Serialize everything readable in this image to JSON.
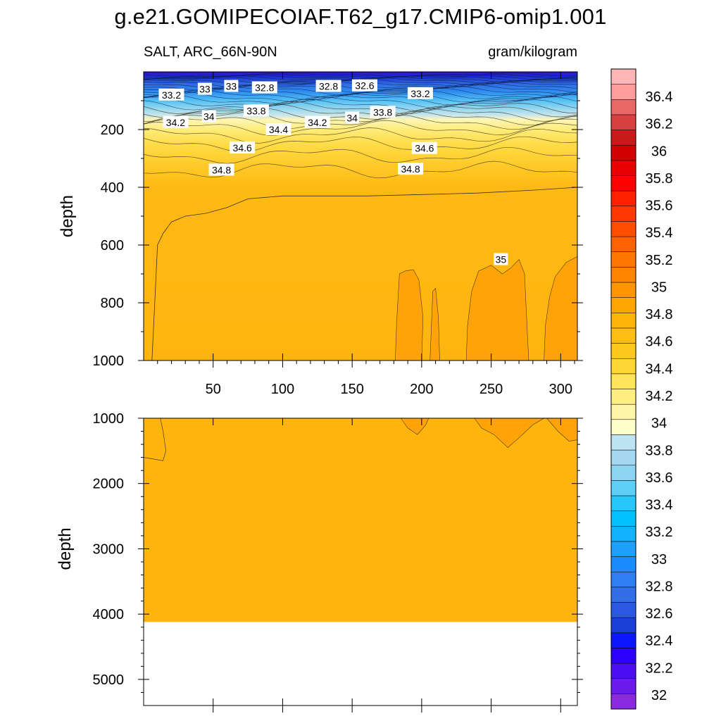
{
  "header": {
    "title": "g.e21.GOMIPECOIAF.T62_g17.CMIP6-omip1.001",
    "variable_region": "SALT, ARC_66N-90N",
    "units": "gram/kilogram"
  },
  "chart_data": {
    "type": "contour",
    "variable": "SALT",
    "region": "ARC_66N-90N",
    "units": "gram/kilogram",
    "x_axis": {
      "range": [
        0,
        312
      ],
      "ticks": [
        50,
        100,
        150,
        200,
        250,
        300
      ]
    },
    "panels": [
      {
        "name": "upper",
        "ylabel": "depth",
        "ylim": [
          0,
          1000
        ],
        "y_ticks": [
          200,
          400,
          600,
          800,
          1000
        ],
        "contour_labels": [
          {
            "text": "33.2",
            "x": 20,
            "depth": 80
          },
          {
            "text": "33",
            "x": 44,
            "depth": 60
          },
          {
            "text": "33",
            "x": 63,
            "depth": 50
          },
          {
            "text": "32.8",
            "x": 87,
            "depth": 55
          },
          {
            "text": "32.8",
            "x": 133,
            "depth": 50
          },
          {
            "text": "32.6",
            "x": 159,
            "depth": 48
          },
          {
            "text": "33.2",
            "x": 199,
            "depth": 75
          },
          {
            "text": "34.2",
            "x": 23,
            "depth": 175
          },
          {
            "text": "34",
            "x": 47,
            "depth": 155
          },
          {
            "text": "33.8",
            "x": 81,
            "depth": 135
          },
          {
            "text": "34.2",
            "x": 125,
            "depth": 175
          },
          {
            "text": "34",
            "x": 150,
            "depth": 160
          },
          {
            "text": "33.8",
            "x": 172,
            "depth": 140
          },
          {
            "text": "34.4",
            "x": 97,
            "depth": 200
          },
          {
            "text": "34.6",
            "x": 71,
            "depth": 263
          },
          {
            "text": "34.6",
            "x": 202,
            "depth": 265
          },
          {
            "text": "34.8",
            "x": 56,
            "depth": 340
          },
          {
            "text": "34.8",
            "x": 192,
            "depth": 337
          },
          {
            "text": "35",
            "x": 257,
            "depth": 650
          }
        ]
      },
      {
        "name": "lower",
        "ylabel": "depth",
        "ylim": [
          1000,
          5400
        ],
        "y_ticks": [
          1000,
          2000,
          3000,
          4000,
          5000
        ],
        "bottom_depth": 4120
      }
    ],
    "colorbar": {
      "labels": [
        "32",
        "32.2",
        "32.4",
        "32.6",
        "32.8",
        "33",
        "33.2",
        "33.4",
        "33.6",
        "33.8",
        "34",
        "34.2",
        "34.4",
        "34.6",
        "34.8",
        "35",
        "35.2",
        "35.4",
        "35.6",
        "35.8",
        "36",
        "36.2",
        "36.4"
      ],
      "colors": [
        "#8a2be2",
        "#6a1aea",
        "#4b0df2",
        "#2b00ff",
        "#0c17ff",
        "#1b3fd9",
        "#2b58e2",
        "#336ee8",
        "#2f7ff2",
        "#1a8cff",
        "#1fa0ff",
        "#12b2ff",
        "#00c0ff",
        "#27c6fb",
        "#5ed0f8",
        "#8dd4f3",
        "#a5d8f0",
        "#bde4f3",
        "#ffffcc",
        "#fff5a9",
        "#ffee82",
        "#ffe55a",
        "#ffd633",
        "#ffc81f",
        "#ffbe14",
        "#ffb40a",
        "#ffa500",
        "#ff9500",
        "#ff8500",
        "#ff7600",
        "#ff6200",
        "#ff4e00",
        "#ff3800",
        "#ff2000",
        "#ff0000",
        "#e60000",
        "#d20000",
        "#c81a1a",
        "#d84040",
        "#e86767",
        "#ff9c9c",
        "#ffb6b6"
      ]
    }
  }
}
